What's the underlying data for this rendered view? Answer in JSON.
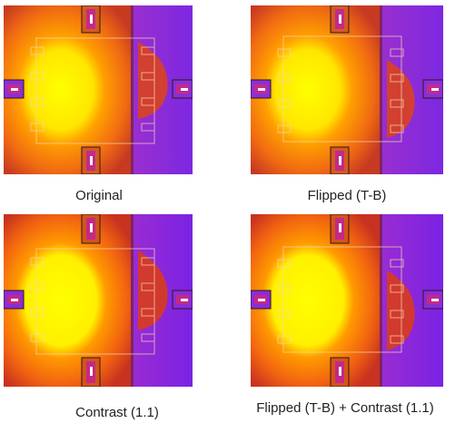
{
  "captions": {
    "original": "Original",
    "flipped": "Flipped (T-B)",
    "contrast": "Contrast (1.1)",
    "flipped_contrast": "Flipped (T-B) + Contrast (1.1)"
  },
  "colors": {
    "page_background": "#ffffff",
    "hot_core": "#ffff00",
    "warm": "#ff8a00",
    "mid": "#e2501c",
    "edge": "#b93428",
    "cold_side": "#8d2bd6",
    "caption_text": "#222222"
  }
}
